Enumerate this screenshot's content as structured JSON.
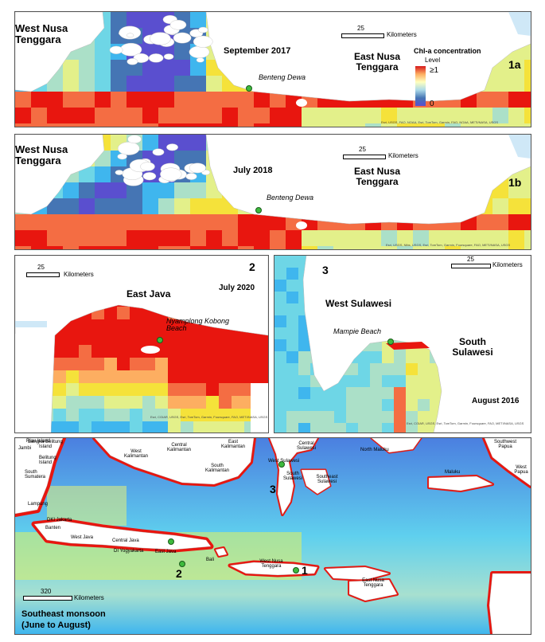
{
  "panel_1a": {
    "tag": "1a",
    "date": "September 2017",
    "region_left": "West Nusa Tenggara",
    "region_right": "East Nusa Tenggara",
    "site": "Benteng Dewa",
    "scale_value": "25",
    "scale_unit": "Kilometers",
    "legend_title": "Chl-a concentration",
    "legend_level": "Level",
    "legend_max": "≥1",
    "legend_min": "0",
    "attribution": "Esri, USGS, FAO, NOAA, Esri, TomTom, Garmin, FAO, NOAA, METI/NASA, USGS"
  },
  "panel_1b": {
    "tag": "1b",
    "date": "July 2018",
    "region_left": "West Nusa Tenggara",
    "region_right": "East Nusa Tenggara",
    "site": "Benteng Dewa",
    "scale_value": "25",
    "scale_unit": "Kilometers",
    "attribution": "Esri, USGS, Nlbs, USGS, Esri, TomTom, Garmin, Foursquare, FAO, METI/NASA, USGS"
  },
  "panel_2": {
    "tag": "2",
    "date": "July 2020",
    "region": "East Java",
    "site": "Nyamplong Kobong Beach",
    "scale_value": "25",
    "scale_unit": "Kilometers",
    "attribution": "Esri, CGIAR, USGS, Esri, TomTom, Garmin, Foursquare, FAO, METI/NASA, USGS"
  },
  "panel_3": {
    "tag": "3",
    "date": "August 2016",
    "region_left": "West Sulawesi",
    "region_right": "South Sulawesi",
    "site": "Mampie Beach",
    "scale_value": "25",
    "scale_unit": "Kilometers",
    "attribution": "Esri, CGIAR, USGS, Esri, TomTom, Garmin, Foursquare, FAO, METI/NASA, USGS"
  },
  "overview": {
    "season": "Southeast monsoon",
    "months": "(June to August)",
    "scale_value": "320",
    "scale_unit": "Kilometers",
    "markers": [
      "1",
      "2",
      "3"
    ],
    "places": [
      "Bangka Belitung Island",
      "Riau Island",
      "Jambi",
      "Belitung Island",
      "South Sumatera",
      "Lampung",
      "DKI Jakarta",
      "Banten",
      "West Java",
      "Central Java",
      "DI Yogyakarta",
      "East Java",
      "Bali",
      "West Nusa Tenggara",
      "East Nusa Tenggara",
      "West Kalimantan",
      "Central Kalimantan",
      "East Kalimantan",
      "South Kalimantan",
      "Central Sulawesi",
      "West Sulawesi",
      "South Sulawesi",
      "Southeast Sulawesi",
      "North Maluku",
      "Maluku",
      "Southwest Papua",
      "West Papua"
    ]
  },
  "colors": {
    "land": "#ffffff",
    "high": "#e8160f",
    "mid": "#f5e23a",
    "low": "#3fb6ee",
    "deep": "#6a7ee0",
    "site_dot": "#3dba3d"
  }
}
